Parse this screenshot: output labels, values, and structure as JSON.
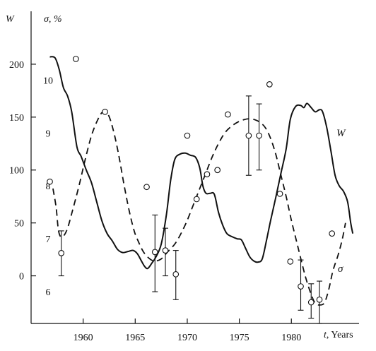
{
  "chart_data": {
    "type": "line",
    "x_axis": {
      "label_var": "t",
      "label_unit": ", Years",
      "range": [
        1955,
        1986.5
      ],
      "ticks": [
        1960,
        1965,
        1970,
        1975,
        1980
      ],
      "tick_labels": [
        "1960",
        "1965",
        "1970",
        "1975",
        "1980"
      ]
    },
    "y_axis_left": {
      "label": "W",
      "range": [
        -45,
        250
      ],
      "ticks": [
        0,
        50,
        100,
        150,
        200
      ],
      "tick_labels": [
        "0",
        "50",
        "100",
        "150",
        "200"
      ]
    },
    "y_axis_right": {
      "label": "σ, %",
      "range": [
        5.4,
        11.3
      ],
      "ticks": [
        6,
        7,
        8,
        9,
        10
      ],
      "tick_labels": [
        "6",
        "7",
        "8",
        "9",
        "10"
      ]
    },
    "series": [
      {
        "name": "W",
        "style": "solid",
        "axis": "left",
        "points": [
          [
            1956.8,
            207
          ],
          [
            1957.3,
            206
          ],
          [
            1957.7,
            195
          ],
          [
            1958.1,
            178
          ],
          [
            1958.5,
            170
          ],
          [
            1958.9,
            155
          ],
          [
            1959.4,
            122
          ],
          [
            1959.8,
            113
          ],
          [
            1960.3,
            100
          ],
          [
            1960.8,
            88
          ],
          [
            1961.3,
            70
          ],
          [
            1961.8,
            52
          ],
          [
            1962.3,
            40
          ],
          [
            1962.8,
            33
          ],
          [
            1963.3,
            25
          ],
          [
            1963.8,
            22
          ],
          [
            1964.3,
            23
          ],
          [
            1964.8,
            24
          ],
          [
            1965.2,
            21
          ],
          [
            1965.6,
            14
          ],
          [
            1965.9,
            9
          ],
          [
            1966.2,
            7
          ],
          [
            1966.6,
            12
          ],
          [
            1967.0,
            18
          ],
          [
            1967.5,
            30
          ],
          [
            1968.0,
            58
          ],
          [
            1968.4,
            90
          ],
          [
            1968.8,
            110
          ],
          [
            1969.3,
            115
          ],
          [
            1969.8,
            116
          ],
          [
            1970.3,
            114
          ],
          [
            1970.8,
            112
          ],
          [
            1971.2,
            102
          ],
          [
            1971.5,
            85
          ],
          [
            1971.8,
            78
          ],
          [
            1972.2,
            78
          ],
          [
            1972.6,
            77
          ],
          [
            1973.0,
            60
          ],
          [
            1973.4,
            48
          ],
          [
            1973.8,
            40
          ],
          [
            1974.3,
            37
          ],
          [
            1974.8,
            35
          ],
          [
            1975.2,
            34
          ],
          [
            1975.6,
            26
          ],
          [
            1976.0,
            18
          ],
          [
            1976.4,
            14
          ],
          [
            1976.8,
            13
          ],
          [
            1977.2,
            16
          ],
          [
            1977.6,
            33
          ],
          [
            1978.0,
            52
          ],
          [
            1978.5,
            74
          ],
          [
            1979.0,
            97
          ],
          [
            1979.5,
            120
          ],
          [
            1979.9,
            148
          ],
          [
            1980.4,
            160
          ],
          [
            1980.9,
            161
          ],
          [
            1981.2,
            159
          ],
          [
            1981.5,
            163
          ],
          [
            1981.9,
            159
          ],
          [
            1982.3,
            155
          ],
          [
            1982.7,
            157
          ],
          [
            1983.0,
            155
          ],
          [
            1983.4,
            140
          ],
          [
            1983.8,
            118
          ],
          [
            1984.2,
            95
          ],
          [
            1984.6,
            85
          ],
          [
            1985.0,
            80
          ],
          [
            1985.4,
            70
          ],
          [
            1985.7,
            50
          ],
          [
            1985.9,
            40
          ]
        ]
      },
      {
        "name": "σ",
        "style": "dashed",
        "axis": "right",
        "points": [
          [
            1957.1,
            7.95
          ],
          [
            1957.4,
            7.6
          ],
          [
            1957.6,
            7.2
          ],
          [
            1957.8,
            7.05
          ],
          [
            1958.1,
            7.05
          ],
          [
            1958.5,
            7.2
          ],
          [
            1959.0,
            7.55
          ],
          [
            1959.6,
            8.0
          ],
          [
            1960.2,
            8.5
          ],
          [
            1960.8,
            8.95
          ],
          [
            1961.4,
            9.25
          ],
          [
            1961.9,
            9.4
          ],
          [
            1962.4,
            9.35
          ],
          [
            1962.9,
            9.05
          ],
          [
            1963.4,
            8.6
          ],
          [
            1963.9,
            8.05
          ],
          [
            1964.4,
            7.55
          ],
          [
            1964.9,
            7.15
          ],
          [
            1965.3,
            6.95
          ],
          [
            1965.8,
            6.75
          ],
          [
            1966.4,
            6.62
          ],
          [
            1966.9,
            6.58
          ],
          [
            1967.5,
            6.62
          ],
          [
            1968.1,
            6.75
          ],
          [
            1968.8,
            6.9
          ],
          [
            1969.4,
            7.1
          ],
          [
            1970.0,
            7.35
          ],
          [
            1970.6,
            7.65
          ],
          [
            1971.2,
            7.95
          ],
          [
            1971.8,
            8.25
          ],
          [
            1972.4,
            8.55
          ],
          [
            1973.0,
            8.8
          ],
          [
            1973.6,
            9.0
          ],
          [
            1974.2,
            9.12
          ],
          [
            1974.8,
            9.2
          ],
          [
            1975.4,
            9.25
          ],
          [
            1976.0,
            9.27
          ],
          [
            1976.5,
            9.25
          ],
          [
            1977.0,
            9.2
          ],
          [
            1977.5,
            9.1
          ],
          [
            1978.0,
            8.9
          ],
          [
            1978.5,
            8.6
          ],
          [
            1979.0,
            8.2
          ],
          [
            1979.5,
            7.8
          ],
          [
            1980.0,
            7.35
          ],
          [
            1980.5,
            6.95
          ],
          [
            1981.0,
            6.55
          ],
          [
            1981.4,
            6.25
          ],
          [
            1981.9,
            5.95
          ],
          [
            1982.3,
            5.78
          ],
          [
            1982.8,
            5.75
          ],
          [
            1983.2,
            5.8
          ],
          [
            1983.6,
            6.05
          ],
          [
            1984.0,
            6.4
          ],
          [
            1984.5,
            6.7
          ],
          [
            1984.9,
            7.0
          ],
          [
            1985.2,
            7.3
          ]
        ]
      },
      {
        "name": "σ observations",
        "style": "points",
        "axis": "right",
        "points": [
          {
            "x": 1956.8,
            "y": 8.08
          },
          {
            "x": 1957.9,
            "y": 6.73,
            "err": [
              6.3,
              7.15
            ]
          },
          {
            "x": 1959.3,
            "y": 10.4
          },
          {
            "x": 1962.1,
            "y": 9.4
          },
          {
            "x": 1966.1,
            "y": 7.98
          },
          {
            "x": 1966.9,
            "y": 6.75,
            "err": [
              6.0,
              7.45
            ]
          },
          {
            "x": 1967.9,
            "y": 6.78,
            "err": [
              6.3,
              7.2
            ]
          },
          {
            "x": 1968.9,
            "y": 6.33,
            "err": [
              5.85,
              6.78
            ]
          },
          {
            "x": 1970.0,
            "y": 8.95
          },
          {
            "x": 1970.9,
            "y": 7.75
          },
          {
            "x": 1971.9,
            "y": 8.22
          },
          {
            "x": 1972.9,
            "y": 8.3
          },
          {
            "x": 1973.9,
            "y": 9.35
          },
          {
            "x": 1975.9,
            "y": 8.95,
            "err": [
              8.2,
              9.7
            ]
          },
          {
            "x": 1976.9,
            "y": 8.95,
            "err": [
              8.3,
              9.55
            ]
          },
          {
            "x": 1977.9,
            "y": 9.92
          },
          {
            "x": 1978.9,
            "y": 7.85
          },
          {
            "x": 1979.9,
            "y": 6.57
          },
          {
            "x": 1980.9,
            "y": 6.1,
            "err": [
              5.65,
              6.6
            ]
          },
          {
            "x": 1981.9,
            "y": 5.8,
            "err": [
              5.5,
              6.15
            ]
          },
          {
            "x": 1982.7,
            "y": 5.85,
            "err": [
              5.4,
              6.2
            ]
          },
          {
            "x": 1983.9,
            "y": 7.1
          }
        ]
      }
    ]
  }
}
